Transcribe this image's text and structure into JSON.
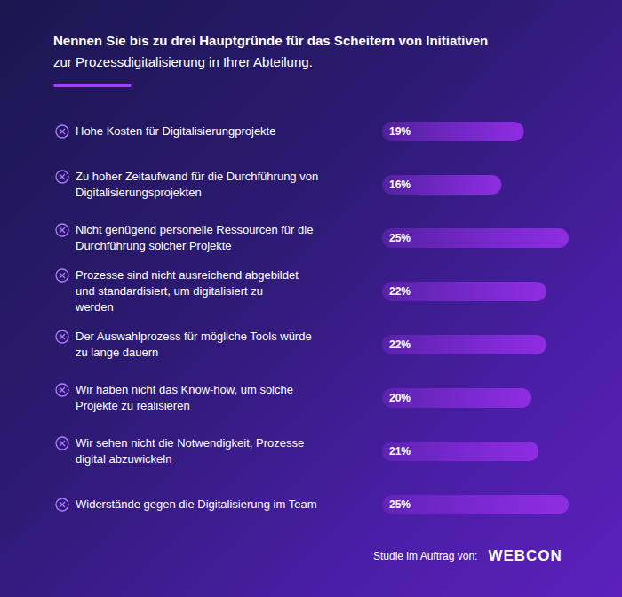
{
  "chart_data": {
    "type": "bar",
    "orientation": "horizontal",
    "title": "Nennen Sie bis zu drei Hauptgründe für das Scheitern von Initiativen",
    "subtitle": "zur Prozessdigitalisierung in Ihrer Abteilung.",
    "categories": [
      "Hohe Kosten für Digitalisierungprojekte",
      "Zu hoher Zeitaufwand für die Durchführung von Digitalisierungsprojekten",
      "Nicht genügend personelle Ressourcen für die Durchführung solcher Projekte",
      "Prozesse sind nicht ausreichend abgebildet und standardisiert, um digitalisiert zu werden",
      "Der Auswahlprozess für mögliche Tools würde zu lange dauern",
      "Wir haben nicht das Know-how, um solche Projekte zu realisieren",
      "Wir sehen nicht die Notwendigkeit, Prozesse digital abzuwickeln",
      "Widerstände gegen die Digitalisierung im Team"
    ],
    "values": [
      19,
      16,
      25,
      22,
      22,
      20,
      21,
      25
    ],
    "value_labels": [
      "19%",
      "16%",
      "25%",
      "22%",
      "22%",
      "20%",
      "21%",
      "25%"
    ],
    "data_labels": true,
    "color": "#8e2de2",
    "xlim": [
      0,
      25
    ],
    "tick_labels": false,
    "grid": false,
    "source": "Studie im Auftrag von:",
    "brand": "WEBCON"
  }
}
